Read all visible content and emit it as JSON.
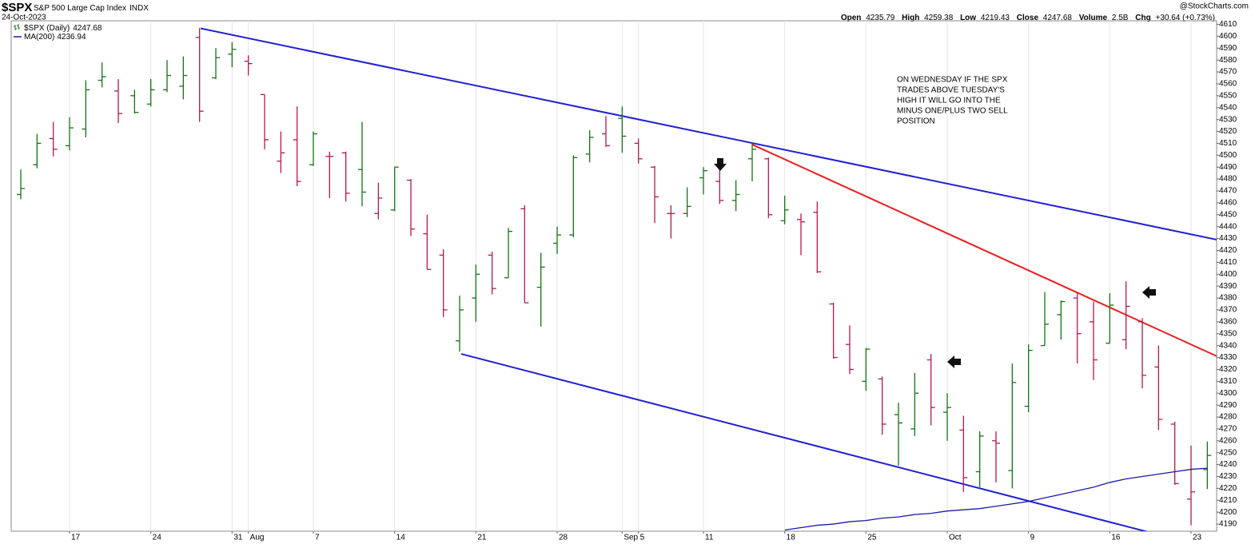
{
  "chart_data": {
    "type": "ohlc",
    "symbol": "$SPX",
    "title": "S&P 500 Large Cap Index",
    "exchange": "INDX",
    "date": "24-Oct-2023",
    "source": "@StockCharts.com",
    "quote": {
      "labels": [
        "Open",
        "High",
        "Low",
        "Close",
        "Volume",
        "Chg"
      ],
      "volume": "2.5B",
      "change": "+30.64 (+0.73%)"
    },
    "categories": [
      null,
      null,
      null,
      "17",
      null,
      null,
      null,
      null,
      "24",
      null,
      null,
      null,
      null,
      "31",
      "Aug",
      null,
      null,
      null,
      "7",
      null,
      null,
      null,
      null,
      "14",
      null,
      null,
      null,
      null,
      "21",
      null,
      null,
      null,
      null,
      "28",
      null,
      null,
      null,
      "Sep",
      "5",
      null,
      null,
      null,
      "11",
      null,
      null,
      null,
      null,
      "18",
      null,
      null,
      null,
      null,
      "25",
      null,
      null,
      null,
      null,
      "Oct",
      null,
      null,
      null,
      null,
      "9",
      null,
      null,
      null,
      null,
      "16",
      null,
      null,
      null,
      null,
      "23",
      null
    ],
    "series": [
      {
        "name": "$SPX (Daily)",
        "type": "ohlc",
        "up_color": "#137313",
        "down_color": "#b5174f",
        "open": [
          4467,
          4492,
          4514,
          4508,
          4522,
          4563,
          4554,
          4550,
          4543,
          4555,
          4558,
          4599,
          4565,
          4585,
          4579,
          4551,
          4495,
          4513,
          4492,
          4499,
          4502,
          4488,
          4451,
          4454,
          4479,
          4434,
          4416,
          4344,
          4380,
          4416,
          4397,
          4455,
          4389,
          4426,
          4433,
          4501,
          4518,
          4531,
          4510,
          4490,
          4451,
          4451,
          4481,
          4478,
          4462,
          4497,
          4497,
          4445,
          4446,
          4452,
          4375,
          4341,
          4310,
          4312,
          4282,
          4270,
          4328,
          4284,
          4269,
          4234,
          4260,
          4235,
          4289,
          4340,
          4366,
          4380,
          4360,
          4342,
          4345,
          4360,
          4322,
          4274,
          4211,
          4235.79
        ],
        "high": [
          4488,
          4518,
          4528,
          4532,
          4563,
          4578,
          4564,
          4555,
          4564,
          4580,
          4583,
          4607,
          4590,
          4595,
          4584,
          4551,
          4520,
          4541,
          4520,
          4503,
          4503,
          4528,
          4477,
          4490,
          4480,
          4450,
          4421,
          4382,
          4408,
          4419,
          4439,
          4458,
          4418,
          4440,
          4500,
          4521,
          4533,
          4541,
          4514,
          4491,
          4458,
          4473,
          4490,
          4488,
          4479,
          4511,
          4498,
          4466,
          4451,
          4461,
          4376,
          4357,
          4338,
          4314,
          4292,
          4317,
          4333,
          4300,
          4281,
          4268,
          4268,
          4325,
          4341,
          4385,
          4378,
          4385,
          4377,
          4384,
          4394,
          4363,
          4340,
          4276,
          4256,
          4259.38
        ],
        "low": [
          4463,
          4489,
          4499,
          4504,
          4515,
          4557,
          4527,
          4535,
          4541,
          4553,
          4547,
          4528,
          4564,
          4574,
          4567,
          4505,
          4485,
          4474,
          4491,
          4464,
          4461,
          4457,
          4446,
          4453,
          4432,
          4404,
          4364,
          4335,
          4360,
          4383,
          4397,
          4376,
          4356,
          4417,
          4431,
          4494,
          4507,
          4502,
          4493,
          4443,
          4430,
          4448,
          4467,
          4459,
          4453,
          4478,
          4447,
          4442,
          4416,
          4401,
          4329,
          4316,
          4302,
          4265,
          4239,
          4264,
          4273,
          4260,
          4217,
          4221,
          4225,
          4220,
          4284,
          4340,
          4345,
          4325,
          4311,
          4342,
          4337,
          4304,
          4269,
          4223,
          4189,
          4219.43
        ],
        "close": [
          4472,
          4510,
          4505,
          4523,
          4555,
          4566,
          4535,
          4536,
          4555,
          4567,
          4567,
          4537,
          4582,
          4589,
          4577,
          4513,
          4502,
          4478,
          4518,
          4499,
          4468,
          4469,
          4464,
          4490,
          4438,
          4404,
          4370,
          4370,
          4400,
          4388,
          4436,
          4376,
          4406,
          4433,
          4498,
          4515,
          4508,
          4516,
          4497,
          4465,
          4451,
          4457,
          4487,
          4462,
          4467,
          4505,
          4450,
          4454,
          4444,
          4402,
          4330,
          4320,
          4337,
          4274,
          4275,
          4300,
          4288,
          4288,
          4229,
          4264,
          4258,
          4309,
          4336,
          4358,
          4377,
          4350,
          4328,
          4374,
          4373,
          4315,
          4278,
          4224,
          4217.04,
          4247.68
        ]
      },
      {
        "name": "MA(200)",
        "type": "line",
        "color": "#1a1aa6",
        "values": [
          null,
          null,
          null,
          null,
          null,
          null,
          null,
          null,
          null,
          null,
          null,
          null,
          null,
          null,
          null,
          null,
          null,
          null,
          null,
          null,
          null,
          null,
          null,
          null,
          null,
          null,
          null,
          null,
          null,
          null,
          null,
          null,
          null,
          null,
          null,
          null,
          null,
          null,
          null,
          null,
          null,
          null,
          null,
          null,
          null,
          null,
          null,
          4185,
          4187,
          4189,
          4190,
          4192,
          4193,
          4195,
          4196,
          4198,
          4199,
          4201,
          4202,
          4203,
          4205,
          4207,
          4209,
          4212,
          4215,
          4218,
          4221,
          4225,
          4228,
          4230,
          4232,
          4234,
          4236,
          4236.94
        ]
      }
    ],
    "trendlines": [
      {
        "color": "#1f1fd6",
        "x": [
          11.07,
          73.6
        ],
        "y": [
          4606.6,
          4429
        ]
      },
      {
        "color": "#1f1fd6",
        "x": [
          27.1,
          72.0
        ],
        "y": [
          4333,
          4174
        ]
      },
      {
        "color": "#ee1c1c",
        "x": [
          45.0,
          73.6
        ],
        "y": [
          4509,
          4331
        ]
      }
    ],
    "annotation": [
      "ON WEDNESDAY IF THE SPX",
      "TRADES ABOVE TUESDAY'S",
      "HIGH IT WILL GO INTO THE",
      "MINUS ONE/PLUS TWO SELL",
      "POSITION"
    ],
    "ylim": [
      4184,
      4613
    ],
    "yticks": [
      4190,
      4200,
      4210,
      4220,
      4230,
      4240,
      4250,
      4260,
      4270,
      4280,
      4290,
      4300,
      4310,
      4320,
      4330,
      4340,
      4350,
      4360,
      4370,
      4380,
      4390,
      4400,
      4410,
      4420,
      4430,
      4440,
      4450,
      4460,
      4470,
      4480,
      4490,
      4500,
      4510,
      4520,
      4530,
      4540,
      4550,
      4560,
      4570,
      4580,
      4590,
      4600,
      4610
    ],
    "grid": true
  }
}
